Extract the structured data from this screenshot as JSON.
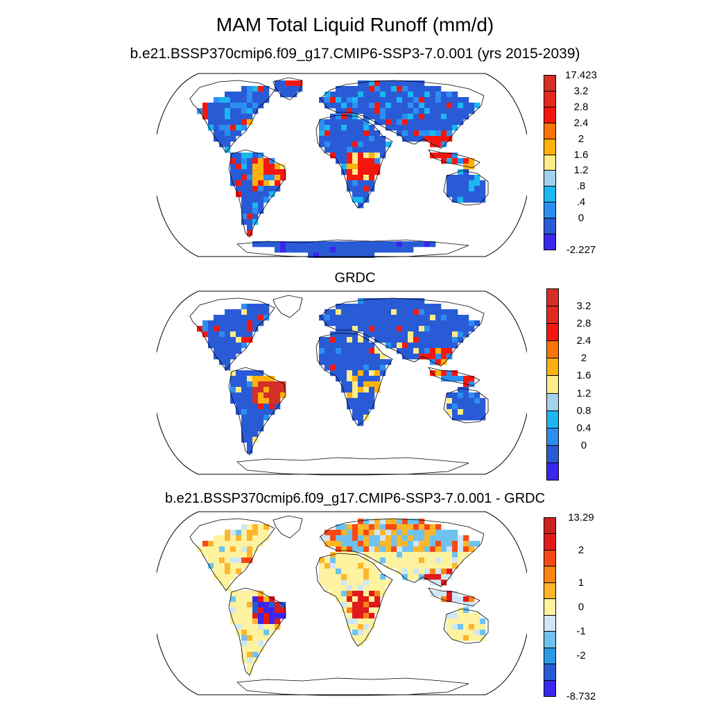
{
  "title": "MAM Total Liquid Runoff (mm/d)",
  "panels": [
    {
      "subtitle": "b.e21.BSSP370cmip6.f09_g17.CMIP6-SSP3-7.0.001 (yrs 2015-2039)",
      "colorbar": {
        "colors": [
          "#d62f27",
          "#e4291f",
          "#f5170f",
          "#fc7405",
          "#fdb20d",
          "#fdec88",
          "#a3d2ee",
          "#1bb7f2",
          "#2c8ef2",
          "#2a5bd6",
          "#3a26ed"
        ],
        "labels": [
          "17.423",
          "3.2",
          "2.8",
          "2.4",
          "2",
          "1.6",
          "1.2",
          ".8",
          ".4",
          "0",
          "-2.227"
        ]
      },
      "map_style": "model"
    },
    {
      "subtitle": "GRDC",
      "colorbar": {
        "colors": [
          "#d62f27",
          "#e4291f",
          "#f5170f",
          "#fc7405",
          "#fdb20d",
          "#fdec88",
          "#a3d2ee",
          "#1bb7f2",
          "#2c8ef2",
          "#2a5bd6",
          "#3a26ed"
        ],
        "labels": [
          "3.2",
          "2.8",
          "2.4",
          "2",
          "1.6",
          "1.2",
          "0.8",
          "0.4",
          "0"
        ]
      },
      "map_style": "obs"
    },
    {
      "subtitle": "b.e21.BSSP370cmip6.f09_g17.CMIP6-SSP3-7.0.001 - GRDC",
      "colorbar": {
        "colors": [
          "#cc2222",
          "#e01a1a",
          "#f54a14",
          "#fa8414",
          "#fdb52a",
          "#fdf2a0",
          "#cfe6f4",
          "#6fc2ee",
          "#2a9ae8",
          "#2a5bd6",
          "#3a26ed"
        ],
        "labels": [
          "13.29",
          "2",
          "1",
          "0",
          "-1",
          "-2",
          "-8.732"
        ]
      },
      "map_style": "diff"
    }
  ]
}
